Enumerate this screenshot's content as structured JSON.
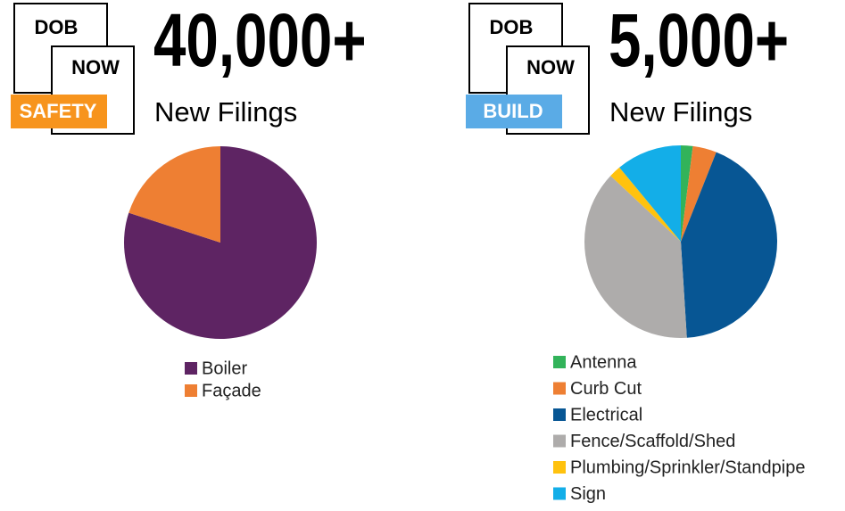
{
  "chart_data": [
    {
      "type": "pie",
      "title": "40,000+",
      "subtitle": "New Filings",
      "logo": [
        "DOB",
        "NOW",
        "SAFETY"
      ],
      "logo_color": "#f7941d",
      "categories": [
        "Boiler",
        "Façade"
      ],
      "values": [
        80,
        20
      ],
      "colors": [
        "#5e2463",
        "#ee7f33"
      ]
    },
    {
      "type": "pie",
      "title": "5,000+",
      "subtitle": "New Filings",
      "logo": [
        "DOB",
        "NOW",
        "BUILD"
      ],
      "logo_color": "#5aabe6",
      "categories": [
        "Antenna",
        "Curb Cut",
        "Electrical",
        "Fence/Scaffold/Shed",
        "Plumbing/Sprinkler/Standpipe",
        "Sign"
      ],
      "values": [
        2,
        4,
        43,
        38,
        2,
        11
      ],
      "colors": [
        "#32b35a",
        "#ee7f33",
        "#075694",
        "#aeacab",
        "#ffc20e",
        "#13aee8"
      ]
    }
  ]
}
